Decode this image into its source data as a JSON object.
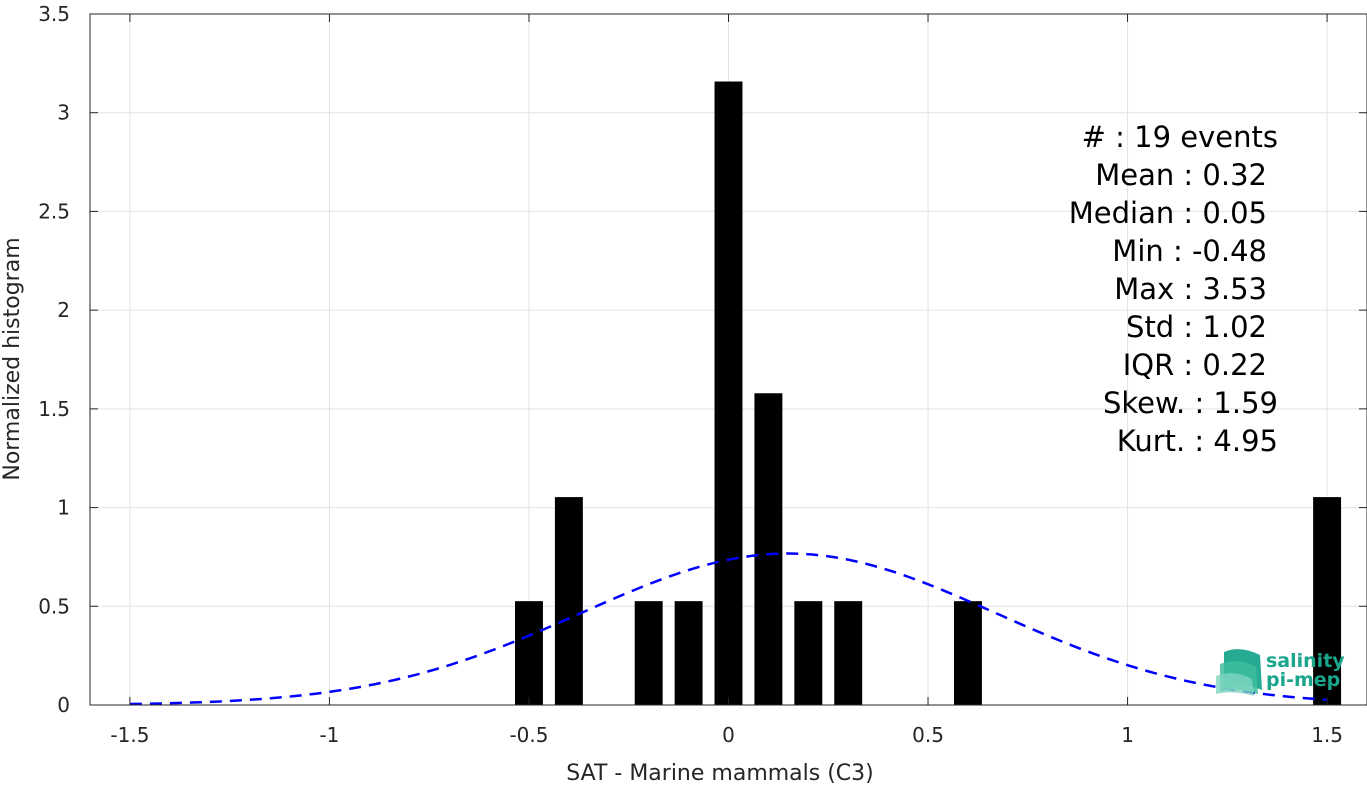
{
  "chart_data": {
    "type": "bar",
    "xlabel": "SAT - Marine mammals (C3)",
    "ylabel": "Normalized histogram",
    "xlim": [
      -1.6,
      1.6
    ],
    "ylim": [
      0,
      3.5
    ],
    "xticks": [
      -1.5,
      -1,
      -0.5,
      0,
      0.5,
      1,
      1.5
    ],
    "xtick_labels": [
      "-1.5",
      "-1",
      "-0.5",
      "0",
      "0.5",
      "1",
      "1.5"
    ],
    "yticks": [
      0,
      0.5,
      1,
      1.5,
      2,
      2.5,
      3,
      3.5
    ],
    "ytick_labels": [
      "0",
      "0.5",
      "1",
      "1.5",
      "2",
      "2.5",
      "3",
      "3.5"
    ],
    "grid": true,
    "bar_width": 0.07,
    "bars": [
      {
        "x": -0.5,
        "value": 0.526
      },
      {
        "x": -0.4,
        "value": 1.053
      },
      {
        "x": -0.2,
        "value": 0.526
      },
      {
        "x": -0.1,
        "value": 0.526
      },
      {
        "x": 0.0,
        "value": 3.158
      },
      {
        "x": 0.1,
        "value": 1.579
      },
      {
        "x": 0.2,
        "value": 0.526
      },
      {
        "x": 0.3,
        "value": 0.526
      },
      {
        "x": 0.6,
        "value": 0.526
      },
      {
        "x": 1.5,
        "value": 1.053
      }
    ],
    "fit_curve": {
      "type": "normal",
      "mean": 0.15,
      "sigma": 0.52,
      "x_range": [
        -1.5,
        1.5
      ],
      "color": "#0000ff",
      "style": "dashed"
    },
    "bar_color": "#000000"
  },
  "stats": {
    "count": "#  : 19 events",
    "mean": "Mean : 0.32",
    "median": "Median : 0.05",
    "min": "Min : -0.48",
    "max": "Max : 3.53",
    "std": "Std : 1.02",
    "iqr": "IQR : 0.22",
    "skew": "Skew. : 1.59",
    "kurt": "Kurt. : 4.95"
  },
  "logo": {
    "line1": "salinity",
    "line2": "pi-mep",
    "color": "#1aa58c"
  }
}
